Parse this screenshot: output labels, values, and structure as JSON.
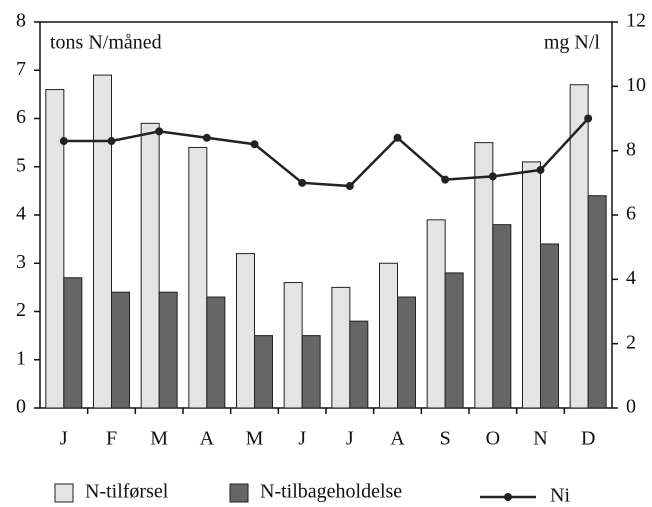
{
  "chart_data": {
    "type": "bar",
    "ylabel": "tons N/måned",
    "y2label": "mg N/l",
    "categories": [
      "J",
      "F",
      "M",
      "A",
      "M",
      "J",
      "J",
      "A",
      "S",
      "O",
      "N",
      "D"
    ],
    "series": [
      {
        "name": "N-tilførsel",
        "color": "#e4e4e4",
        "values": [
          6.6,
          6.9,
          5.9,
          5.4,
          3.2,
          2.6,
          2.5,
          3.0,
          3.9,
          5.5,
          5.1,
          6.7
        ]
      },
      {
        "name": "N-tilbageholdelse",
        "color": "#666666",
        "values": [
          2.7,
          2.4,
          2.4,
          2.3,
          1.5,
          1.5,
          1.8,
          2.3,
          2.8,
          3.8,
          3.4,
          4.4
        ]
      },
      {
        "name": "Ni",
        "color": "#222222",
        "type": "line",
        "axis": "y2",
        "values": [
          8.3,
          8.3,
          8.6,
          8.4,
          8.2,
          7.0,
          6.9,
          8.4,
          7.1,
          7.2,
          7.4,
          9.0
        ]
      }
    ],
    "ylim": [
      0,
      8
    ],
    "yticks": [
      0,
      1,
      2,
      3,
      4,
      5,
      6,
      7,
      8
    ],
    "y2lim": [
      0,
      12
    ],
    "y2ticks": [
      0,
      2,
      4,
      6,
      8,
      10,
      12
    ],
    "grid": false
  }
}
